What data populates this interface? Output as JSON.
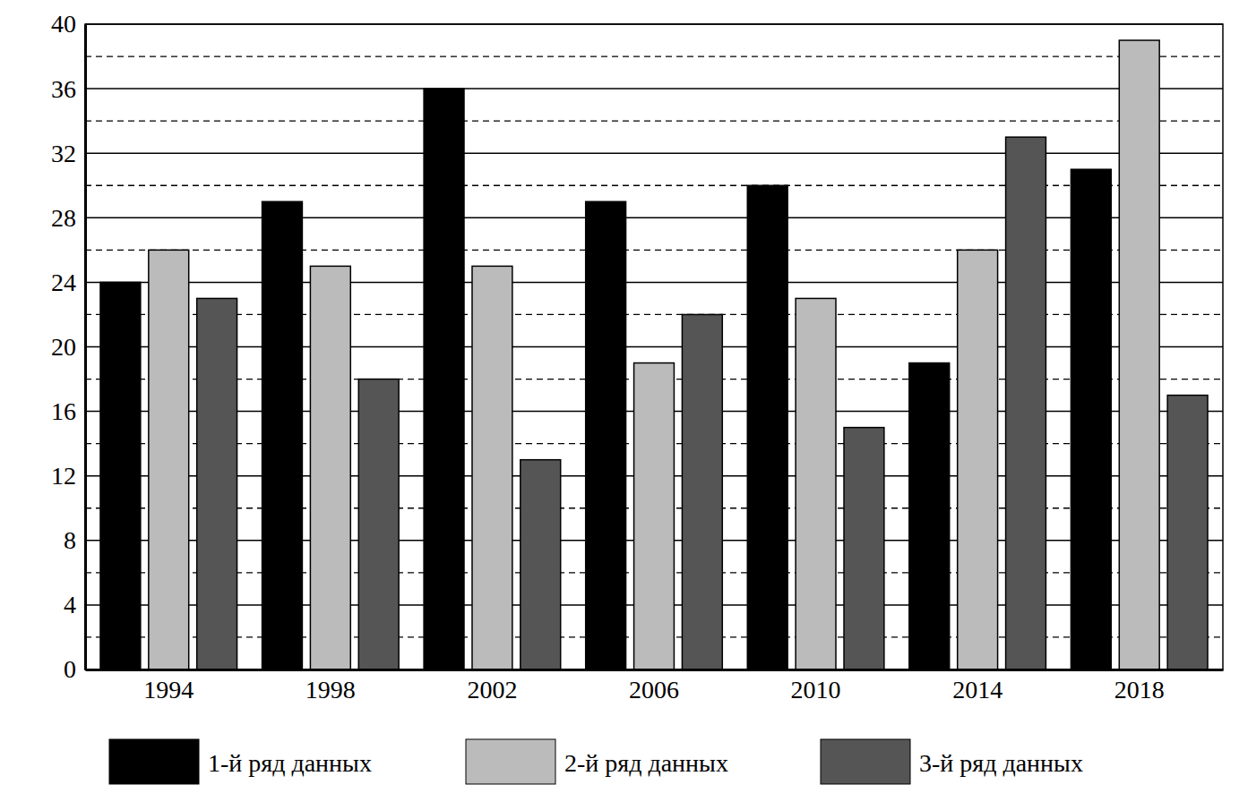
{
  "chart_data": {
    "type": "bar",
    "categories": [
      "1994",
      "1998",
      "2002",
      "2006",
      "2010",
      "2014",
      "2018"
    ],
    "series": [
      {
        "name": "1-й ряд данных",
        "color": "#000000",
        "values": [
          24,
          29,
          36,
          29,
          30,
          19,
          31
        ]
      },
      {
        "name": "2-й ряд данных",
        "color": "#bbbbbb",
        "values": [
          26,
          25,
          25,
          19,
          23,
          26,
          39
        ]
      },
      {
        "name": "3-й ряд данных",
        "color": "#555555",
        "values": [
          23,
          18,
          13,
          22,
          15,
          33,
          17
        ]
      }
    ],
    "ylim": [
      0,
      40
    ],
    "yticks": [
      0,
      4,
      8,
      12,
      16,
      20,
      24,
      28,
      32,
      36,
      40
    ],
    "grid": true,
    "legend": "bottom"
  }
}
